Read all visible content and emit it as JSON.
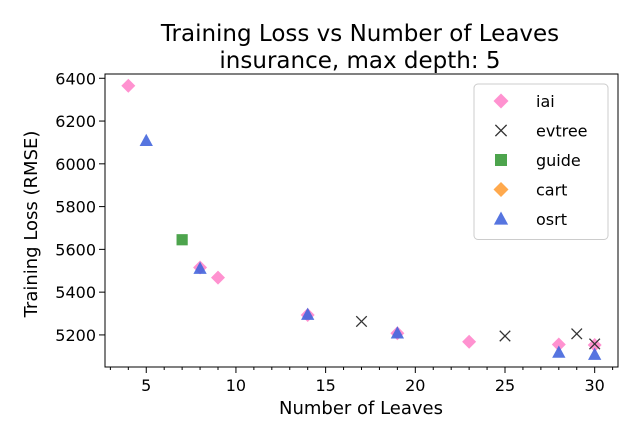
{
  "chart_data": {
    "type": "scatter",
    "title": "Training Loss vs Number of Leaves",
    "subtitle": "insurance, max depth: 5",
    "xlabel": "Number of Leaves",
    "ylabel": "Training Loss (RMSE)",
    "xlim": [
      2.7,
      31.3
    ],
    "ylim": [
      5050,
      6420
    ],
    "xticks": [
      5,
      10,
      15,
      20,
      25,
      30
    ],
    "yticks": [
      5200,
      5400,
      5600,
      5800,
      6000,
      6200,
      6400
    ],
    "grid": false,
    "legend_position": "top-right",
    "series": [
      {
        "name": "iai",
        "marker": "diamond",
        "color": "#ff7fc8",
        "points": [
          [
            4,
            6365
          ],
          [
            8,
            5515
          ],
          [
            9,
            5468
          ],
          [
            14,
            5293
          ],
          [
            19,
            5208
          ],
          [
            23,
            5168
          ],
          [
            28,
            5155
          ],
          [
            30,
            5153
          ]
        ]
      },
      {
        "name": "evtree",
        "marker": "x",
        "color": "#333333",
        "points": [
          [
            17,
            5263
          ],
          [
            25,
            5195
          ],
          [
            29,
            5205
          ],
          [
            30,
            5158
          ]
        ]
      },
      {
        "name": "guide",
        "marker": "square",
        "color": "#3a9a3a",
        "points": [
          [
            7,
            5645
          ]
        ]
      },
      {
        "name": "cart",
        "marker": "diamond",
        "color": "#ff9a2e",
        "points": []
      },
      {
        "name": "osrt",
        "marker": "triangle",
        "color": "#4466dd",
        "points": [
          [
            5,
            6108
          ],
          [
            8,
            5510
          ],
          [
            14,
            5295
          ],
          [
            19,
            5208
          ],
          [
            28,
            5118
          ],
          [
            30,
            5108
          ]
        ]
      }
    ]
  }
}
